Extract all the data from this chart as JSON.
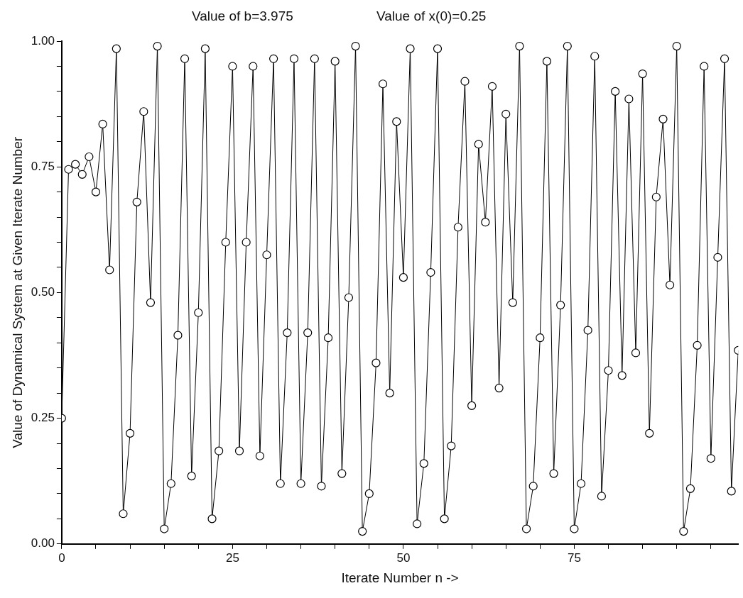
{
  "chart_data": {
    "type": "line",
    "title": "Value of b=3.975",
    "subtitle": "Value of x(0)=0.25",
    "xlabel": "Iterate Number n ->",
    "ylabel": "Value of Dynamical System at Given Iterate Number",
    "x": [
      0,
      1,
      2,
      3,
      4,
      5,
      6,
      7,
      8,
      9,
      10,
      11,
      12,
      13,
      14,
      15,
      16,
      17,
      18,
      19,
      20,
      21,
      22,
      23,
      24,
      25,
      26,
      27,
      28,
      29,
      30,
      31,
      32,
      33,
      34,
      35,
      36,
      37,
      38,
      39,
      40,
      41,
      42,
      43,
      44,
      45,
      46,
      47,
      48,
      49,
      50,
      51,
      52,
      53,
      54,
      55,
      56,
      57,
      58,
      59,
      60,
      61,
      62,
      63,
      64,
      65,
      66,
      67,
      68,
      69,
      70,
      71,
      72,
      73,
      74,
      75,
      76,
      77,
      78,
      79,
      80,
      81,
      82,
      83,
      84,
      85,
      86,
      87,
      88,
      89,
      90,
      91,
      92,
      93,
      94,
      95,
      96,
      97,
      98,
      99
    ],
    "series": [
      {
        "color": "#000000",
        "values": [
          0.25,
          0.745,
          0.755,
          0.735,
          0.77,
          0.7,
          0.835,
          0.545,
          0.985,
          0.06,
          0.22,
          0.68,
          0.86,
          0.48,
          0.99,
          0.03,
          0.12,
          0.415,
          0.965,
          0.135,
          0.46,
          0.985,
          0.05,
          0.185,
          0.6,
          0.95,
          0.185,
          0.6,
          0.95,
          0.175,
          0.575,
          0.965,
          0.12,
          0.42,
          0.965,
          0.12,
          0.42,
          0.965,
          0.115,
          0.41,
          0.96,
          0.14,
          0.49,
          0.99,
          0.025,
          0.1,
          0.36,
          0.915,
          0.3,
          0.84,
          0.53,
          0.985,
          0.04,
          0.16,
          0.54,
          0.985,
          0.05,
          0.195,
          0.63,
          0.92,
          0.275,
          0.795,
          0.64,
          0.91,
          0.31,
          0.855,
          0.48,
          0.99,
          0.03,
          0.115,
          0.41,
          0.96,
          0.14,
          0.475,
          0.99,
          0.03,
          0.12,
          0.425,
          0.97,
          0.095,
          0.345,
          0.9,
          0.335,
          0.885,
          0.38,
          0.935,
          0.22,
          0.69,
          0.845,
          0.515,
          0.99,
          0.025,
          0.11,
          0.395,
          0.95,
          0.17,
          0.57,
          0.965,
          0.105,
          0.385
        ]
      }
    ],
    "xlim": [
      0,
      99
    ],
    "xticks": [
      0,
      {
        "value": 5,
        "label": null
      },
      {
        "value": 10,
        "label": null
      },
      {
        "value": 15,
        "label": null
      },
      {
        "value": 20,
        "label": null
      },
      25,
      {
        "value": 30,
        "label": null
      },
      {
        "value": 35,
        "label": null
      },
      {
        "value": 40,
        "label": null
      },
      {
        "value": 45,
        "label": null
      },
      50,
      {
        "value": 55,
        "label": null
      },
      {
        "value": 60,
        "label": null
      },
      {
        "value": 65,
        "label": null
      },
      {
        "value": 70,
        "label": null
      },
      75,
      {
        "value": 80,
        "label": null
      },
      {
        "value": 85,
        "label": null
      },
      {
        "value": 90,
        "label": null
      },
      {
        "value": 95,
        "label": null
      }
    ],
    "ylim": [
      0,
      1
    ],
    "yticks": [
      {
        "value": 0,
        "label": "0.00"
      },
      {
        "value": 0.05,
        "label": null
      },
      {
        "value": 0.1,
        "label": null
      },
      {
        "value": 0.15,
        "label": null
      },
      {
        "value": 0.2,
        "label": null
      },
      {
        "value": 0.25,
        "label": "0.25"
      },
      {
        "value": 0.3,
        "label": null
      },
      {
        "value": 0.35,
        "label": null
      },
      {
        "value": 0.4,
        "label": null
      },
      {
        "value": 0.45,
        "label": null
      },
      {
        "value": 0.5,
        "label": "0.50"
      },
      {
        "value": 0.55,
        "label": null
      },
      {
        "value": 0.6,
        "label": null
      },
      {
        "value": 0.65,
        "label": null
      },
      {
        "value": 0.7,
        "label": null
      },
      {
        "value": 0.75,
        "label": "0.75"
      },
      {
        "value": 0.8,
        "label": null
      },
      {
        "value": 0.85,
        "label": null
      },
      {
        "value": 0.9,
        "label": null
      },
      {
        "value": 0.95,
        "label": null
      },
      {
        "value": 1,
        "label": "1.00"
      }
    ],
    "grid": false,
    "legend": false,
    "marker": "circle",
    "line_style": "solid"
  }
}
